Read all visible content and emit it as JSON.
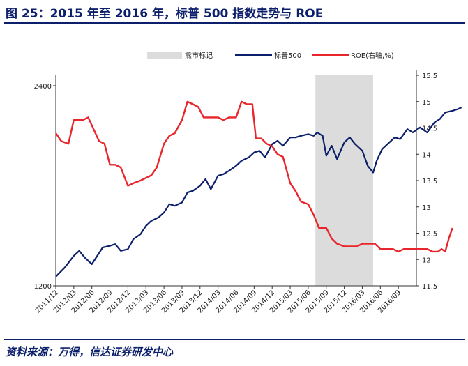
{
  "title": "图 25：2015 年至 2016 年，标普 500 指数走势与 ROE",
  "source": "资料来源：万得，信达证券研发中心",
  "chart_data": {
    "type": "line",
    "title": "",
    "x_categories": [
      "2011/12",
      "2012/03",
      "2012/06",
      "2012/09",
      "2012/12",
      "2013/03",
      "2013/06",
      "2013/09",
      "2013/12",
      "2014/03",
      "2014/06",
      "2014/09",
      "2014/12",
      "2015/03",
      "2015/06",
      "2015/09",
      "2015/12",
      "2016/03",
      "2016/06",
      "2016/09"
    ],
    "y_left": {
      "range": [
        1200,
        2400
      ],
      "ticks": [
        "2400",
        "1200"
      ]
    },
    "y_right": {
      "range": [
        11.5,
        15.5
      ],
      "ticks": [
        "15.5",
        "15",
        "14.5",
        "14",
        "13.5",
        "13",
        "12.5",
        "12",
        "11.5"
      ]
    },
    "shaded_region": {
      "label": "熊市标记",
      "from": 14.4,
      "to": 17.6,
      "color": "#dcdcdc"
    },
    "series": [
      {
        "name": "标普500",
        "axis": "left",
        "color": "#0b1f6b",
        "points": [
          [
            0,
            1255
          ],
          [
            0.5,
            1310
          ],
          [
            1,
            1380
          ],
          [
            1.3,
            1410
          ],
          [
            1.6,
            1370
          ],
          [
            2,
            1330
          ],
          [
            2.3,
            1380
          ],
          [
            2.6,
            1430
          ],
          [
            3,
            1440
          ],
          [
            3.3,
            1450
          ],
          [
            3.6,
            1410
          ],
          [
            4,
            1420
          ],
          [
            4.3,
            1480
          ],
          [
            4.7,
            1510
          ],
          [
            5,
            1560
          ],
          [
            5.3,
            1590
          ],
          [
            5.7,
            1610
          ],
          [
            6,
            1640
          ],
          [
            6.3,
            1690
          ],
          [
            6.6,
            1680
          ],
          [
            7,
            1700
          ],
          [
            7.3,
            1760
          ],
          [
            7.6,
            1770
          ],
          [
            8,
            1800
          ],
          [
            8.3,
            1840
          ],
          [
            8.6,
            1780
          ],
          [
            9,
            1860
          ],
          [
            9.3,
            1870
          ],
          [
            9.6,
            1890
          ],
          [
            10,
            1920
          ],
          [
            10.3,
            1950
          ],
          [
            10.7,
            1970
          ],
          [
            11,
            2000
          ],
          [
            11.3,
            2010
          ],
          [
            11.6,
            1970
          ],
          [
            12,
            2050
          ],
          [
            12.3,
            2070
          ],
          [
            12.6,
            2040
          ],
          [
            13,
            2090
          ],
          [
            13.3,
            2090
          ],
          [
            13.6,
            2100
          ],
          [
            14,
            2110
          ],
          [
            14.3,
            2100
          ],
          [
            14.5,
            2120
          ],
          [
            14.8,
            2100
          ],
          [
            15,
            1980
          ],
          [
            15.3,
            2040
          ],
          [
            15.6,
            1960
          ],
          [
            16,
            2060
          ],
          [
            16.3,
            2090
          ],
          [
            16.6,
            2050
          ],
          [
            17,
            2010
          ],
          [
            17.3,
            1920
          ],
          [
            17.6,
            1880
          ],
          [
            17.8,
            1950
          ],
          [
            18.1,
            2020
          ],
          [
            18.5,
            2060
          ],
          [
            18.8,
            2090
          ],
          [
            19.1,
            2080
          ],
          [
            19.5,
            2140
          ],
          [
            19.8,
            2120
          ],
          [
            20.2,
            2150
          ],
          [
            20.6,
            2120
          ],
          [
            21,
            2180
          ],
          [
            21.3,
            2200
          ],
          [
            21.6,
            2240
          ],
          [
            22,
            2250
          ],
          [
            22.3,
            2260
          ],
          [
            22.5,
            2270
          ]
        ]
      },
      {
        "name": "ROE(右轴,%)",
        "axis": "right",
        "color": "#e8262b",
        "points": [
          [
            0,
            14.4
          ],
          [
            0.3,
            14.25
          ],
          [
            0.7,
            14.2
          ],
          [
            1,
            14.65
          ],
          [
            1.5,
            14.65
          ],
          [
            1.8,
            14.7
          ],
          [
            2,
            14.55
          ],
          [
            2.4,
            14.25
          ],
          [
            2.7,
            14.2
          ],
          [
            3,
            13.8
          ],
          [
            3.3,
            13.8
          ],
          [
            3.6,
            13.75
          ],
          [
            4,
            13.4
          ],
          [
            4.3,
            13.45
          ],
          [
            4.7,
            13.5
          ],
          [
            5,
            13.55
          ],
          [
            5.3,
            13.6
          ],
          [
            5.6,
            13.75
          ],
          [
            6,
            14.2
          ],
          [
            6.3,
            14.35
          ],
          [
            6.6,
            14.4
          ],
          [
            7,
            14.65
          ],
          [
            7.3,
            15.0
          ],
          [
            7.6,
            14.95
          ],
          [
            7.9,
            14.9
          ],
          [
            8.2,
            14.7
          ],
          [
            8.6,
            14.7
          ],
          [
            9,
            14.7
          ],
          [
            9.3,
            14.65
          ],
          [
            9.6,
            14.7
          ],
          [
            10,
            14.7
          ],
          [
            10.3,
            15.0
          ],
          [
            10.6,
            14.95
          ],
          [
            10.9,
            14.95
          ],
          [
            11.1,
            14.3
          ],
          [
            11.4,
            14.3
          ],
          [
            11.7,
            14.2
          ],
          [
            12,
            14.15
          ],
          [
            12.3,
            14.0
          ],
          [
            12.6,
            13.95
          ],
          [
            13,
            13.45
          ],
          [
            13.3,
            13.3
          ],
          [
            13.6,
            13.1
          ],
          [
            14,
            13.05
          ],
          [
            14.3,
            12.85
          ],
          [
            14.6,
            12.6
          ],
          [
            15,
            12.6
          ],
          [
            15.3,
            12.4
          ],
          [
            15.6,
            12.3
          ],
          [
            16,
            12.25
          ],
          [
            16.3,
            12.25
          ],
          [
            16.7,
            12.25
          ],
          [
            17,
            12.3
          ],
          [
            17.3,
            12.3
          ],
          [
            17.7,
            12.3
          ],
          [
            18,
            12.2
          ],
          [
            18.3,
            12.2
          ],
          [
            18.7,
            12.2
          ],
          [
            19,
            12.15
          ],
          [
            19.3,
            12.2
          ],
          [
            19.6,
            12.2
          ],
          [
            20,
            12.2
          ],
          [
            20.3,
            12.2
          ],
          [
            20.6,
            12.2
          ],
          [
            20.9,
            12.15
          ],
          [
            21.2,
            12.15
          ],
          [
            21.4,
            12.2
          ],
          [
            21.6,
            12.15
          ],
          [
            21.8,
            12.4
          ],
          [
            22,
            12.6
          ]
        ]
      }
    ],
    "legend": {
      "position": "top",
      "labels": [
        "熊市标记",
        "标普500",
        "ROE(右轴,%)"
      ]
    }
  }
}
